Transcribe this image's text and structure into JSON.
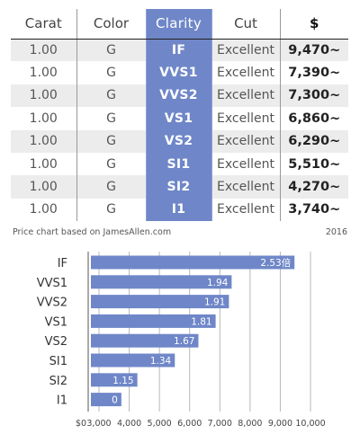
{
  "table": {
    "headers": [
      "Carat",
      "Color",
      "Clarity",
      "Cut",
      "$"
    ],
    "rows": [
      [
        "1.00",
        "G",
        "IF",
        "Excellent",
        "9,470~"
      ],
      [
        "1.00",
        "G",
        "VVS1",
        "Excellent",
        "7,390~"
      ],
      [
        "1.00",
        "G",
        "VVS2",
        "Excellent",
        "7,300~"
      ],
      [
        "1.00",
        "G",
        "VS1",
        "Excellent",
        "6,860~"
      ],
      [
        "1.00",
        "G",
        "VS2",
        "Excellent",
        "6,290~"
      ],
      [
        "1.00",
        "G",
        "SI1",
        "Excellent",
        "5,510~"
      ],
      [
        "1.00",
        "G",
        "SI2",
        "Excellent",
        "4,270~"
      ],
      [
        "1.00",
        "G",
        "I1",
        "Excellent",
        "3,740~"
      ]
    ]
  },
  "caption": {
    "source": "Price chart based on JamesAllen.com",
    "year": "2016"
  },
  "colors": {
    "accent": "#6f87c8",
    "bar": "#6f87c8",
    "stripe": "#ececec"
  },
  "chart_data": {
    "type": "bar",
    "orientation": "horizontal",
    "categories": [
      "IF",
      "VVS1",
      "VVS2",
      "VS1",
      "VS2",
      "SI1",
      "SI2",
      "I1"
    ],
    "values": [
      9470,
      7390,
      7300,
      6860,
      6290,
      5510,
      4270,
      3740
    ],
    "data_labels": [
      "2.53倍",
      "1.94",
      "1.91",
      "1.81",
      "1.67",
      "1.34",
      "1.15",
      "0"
    ],
    "x_ticks": [
      "$0",
      "3,000",
      "4,000",
      "5,000",
      "6,000",
      "7,000",
      "8,000",
      "9,000",
      "10,000"
    ],
    "x_tick_values": [
      0,
      3000,
      4000,
      5000,
      6000,
      7000,
      8000,
      9000,
      10000
    ],
    "xlim": [
      0,
      10000
    ],
    "axis_break": true,
    "grid": true
  }
}
